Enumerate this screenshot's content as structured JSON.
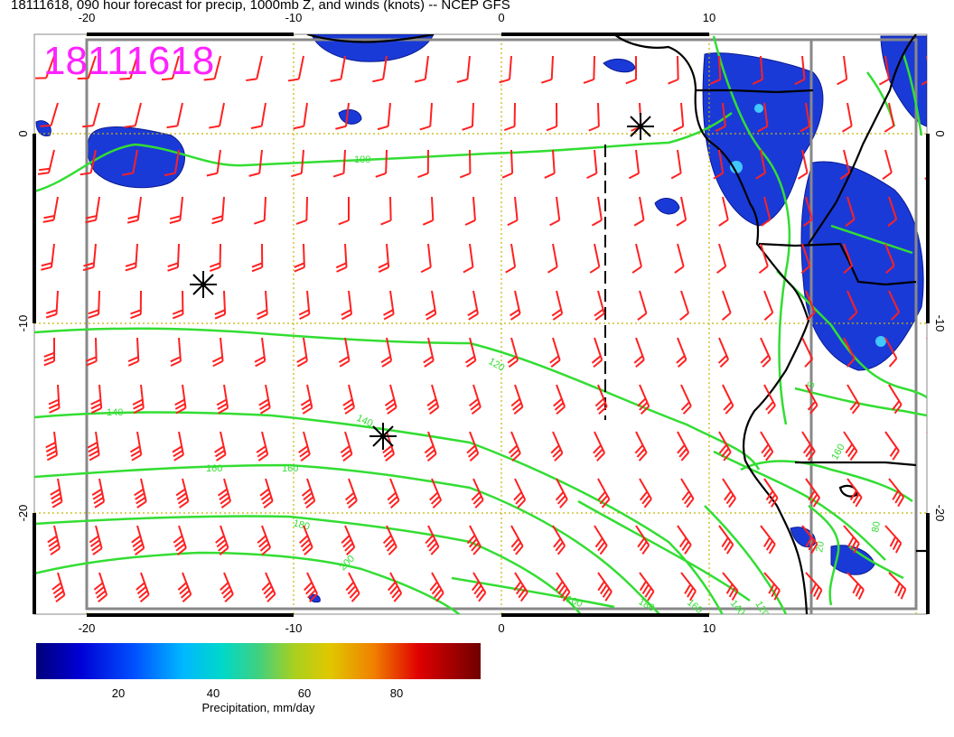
{
  "title": "18111618, 090 hour forecast for precip, 1000mb Z, and winds (knots) -- NCEP GFS",
  "date_stamp": "18111618",
  "axes": {
    "lon_ticks": [
      "-20",
      "-10",
      "0",
      "10"
    ],
    "lat_ticks": [
      "0",
      "-10",
      "-20"
    ]
  },
  "contours": {
    "labels": [
      "100",
      "120",
      "140",
      "140",
      "160",
      "160",
      "180",
      "200",
      "100",
      "180",
      "160",
      "140",
      "120",
      "160",
      "80",
      "20",
      "5"
    ]
  },
  "colorbar": {
    "ticks": [
      "20",
      "40",
      "60",
      "80"
    ],
    "label": "Precipitation, mm/day"
  },
  "colors": {
    "height_contour": "#33dd33",
    "wind_barb": "#ff2020",
    "coastline": "#000000",
    "grid": "#c8b400",
    "stamp": "#ff22ff"
  }
}
